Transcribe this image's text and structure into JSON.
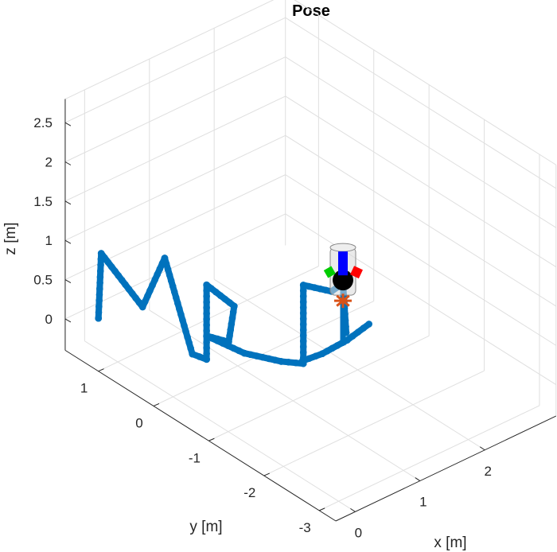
{
  "chart_data": {
    "type": "line",
    "title": "Pose",
    "xlabel": "x [m]",
    "ylabel": "y [m]",
    "zlabel": "z [m]",
    "grid": true,
    "x_ticks": [
      "0",
      "1",
      "2"
    ],
    "y_ticks": [
      "1",
      "0",
      "-1",
      "-2",
      "-3"
    ],
    "z_ticks": [
      "0",
      "0.5",
      "1",
      "1.5",
      "2",
      "2.5"
    ],
    "xlim": [
      -0.3,
      3.1
    ],
    "ylim": [
      -3.3,
      1.6
    ],
    "zlim": [
      -0.4,
      2.8
    ],
    "series": [
      {
        "color": "#0072BD",
        "style": "thick dotted trajectory",
        "points": [
          [
            0.0,
            1.35,
            0.0
          ],
          [
            0.0,
            1.3,
            0.85
          ],
          [
            0.0,
            0.55,
            0.5
          ],
          [
            0.0,
            0.15,
            1.3
          ],
          [
            0.0,
            -0.35,
            0.3
          ],
          [
            0.05,
            -0.55,
            0.3
          ],
          [
            0.05,
            -0.55,
            1.25
          ],
          [
            0.05,
            -1.05,
            1.2
          ],
          [
            0.05,
            -0.95,
            0.7
          ],
          [
            0.05,
            -0.55,
            0.6
          ],
          [
            0.25,
            -1.0,
            0.5
          ],
          [
            0.35,
            -1.55,
            0.6
          ],
          [
            0.35,
            -1.95,
            0.75
          ],
          [
            0.35,
            -1.95,
            1.75
          ],
          [
            0.4,
            -2.4,
            1.85
          ],
          [
            0.45,
            -2.55,
            2.0
          ],
          [
            0.5,
            -2.55,
            1.35
          ]
        ]
      },
      {
        "color": "#0072BD",
        "style": "thick dotted trajectory",
        "points": [
          [
            0.38,
            -1.9,
            0.75
          ],
          [
            0.6,
            -2.0,
            0.8
          ],
          [
            0.9,
            -2.1,
            0.9
          ],
          [
            1.15,
            -2.2,
            1.05
          ]
        ]
      }
    ],
    "robot_marker": {
      "position": [
        0.45,
        -2.55,
        2.0
      ],
      "body_color": "#d9d9d9",
      "axis_colors": [
        "#ff0000",
        "#00cc00",
        "#0000ff"
      ],
      "rotor_color": "#d95319"
    }
  }
}
